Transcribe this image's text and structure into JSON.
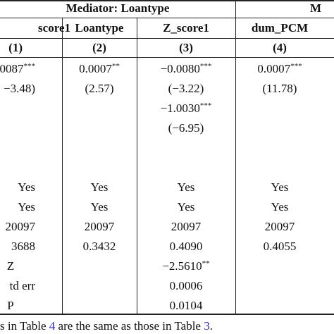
{
  "header": {
    "group1": "Mediator: Loantype",
    "group2": "M",
    "columns": [
      "score1",
      "Loantype",
      "Z_score1",
      "dum_PCM"
    ],
    "numbers": [
      "(1)",
      "(2)",
      "(3)",
      "(4)"
    ]
  },
  "rows": [
    [
      {
        "t": "0087",
        "s": "***"
      },
      {
        "t": "0.0007",
        "s": "**"
      },
      {
        "t": "−0.0080",
        "s": "***"
      },
      {
        "t": "0.0007",
        "s": "***"
      }
    ],
    [
      {
        "t": "−3.48)"
      },
      {
        "t": "(2.57)"
      },
      {
        "t": "(−3.22)"
      },
      {
        "t": "(11.78)"
      }
    ],
    [
      {
        "t": ""
      },
      {
        "t": ""
      },
      {
        "t": "−1.0030",
        "s": "***"
      },
      {
        "t": ""
      }
    ],
    [
      {
        "t": ""
      },
      {
        "t": ""
      },
      {
        "t": "(−6.95)"
      },
      {
        "t": ""
      }
    ],
    [
      {
        "t": ""
      },
      {
        "t": ""
      },
      {
        "t": ""
      },
      {
        "t": ""
      }
    ],
    [
      {
        "t": "Yes"
      },
      {
        "t": "Yes"
      },
      {
        "t": "Yes"
      },
      {
        "t": "Yes"
      }
    ],
    [
      {
        "t": "Yes"
      },
      {
        "t": "Yes"
      },
      {
        "t": "Yes"
      },
      {
        "t": "Yes"
      }
    ],
    [
      {
        "t": "20097"
      },
      {
        "t": "20097"
      },
      {
        "t": "20097"
      },
      {
        "t": "20097"
      }
    ],
    [
      {
        "t": "3688"
      },
      {
        "t": "0.3432"
      },
      {
        "t": "0.4090"
      },
      {
        "t": "0.4055"
      }
    ],
    [
      {
        "t": "Z"
      },
      {
        "t": ""
      },
      {
        "t": "−2.5610",
        "s": "**"
      },
      {
        "t": ""
      }
    ],
    [
      {
        "t": "td err"
      },
      {
        "t": ""
      },
      {
        "t": "0.0006"
      },
      {
        "t": ""
      }
    ],
    [
      {
        "t": "P"
      },
      {
        "t": ""
      },
      {
        "t": "0.0104"
      },
      {
        "t": ""
      }
    ]
  ],
  "footnote": {
    "pre": "s in Table ",
    "ref1": "4",
    "mid": " are the same as those in Table ",
    "ref2": "3",
    "post": "."
  }
}
